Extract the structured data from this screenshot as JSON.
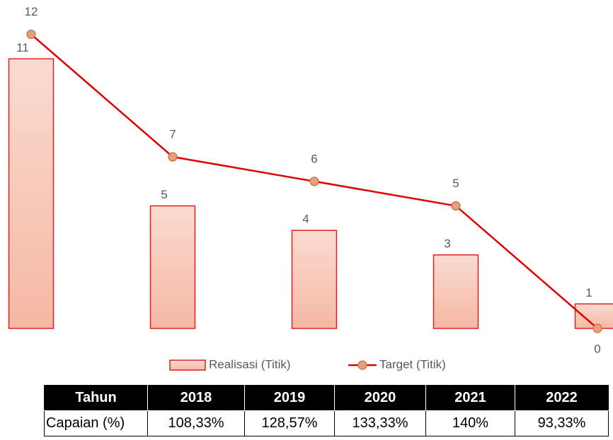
{
  "chart_data": {
    "type": "bar_line",
    "series": [
      {
        "name": "Realisasi (Titik)",
        "type": "bar",
        "color": "#e02020",
        "fill": "#f7c4b3",
        "values": [
          11,
          5,
          4,
          3,
          1
        ]
      },
      {
        "name": "Target (Titik)",
        "type": "line",
        "color": "#e00000",
        "marker_color": "#e8a07a",
        "values": [
          12,
          7,
          6,
          5,
          0
        ]
      }
    ],
    "ylim": [
      0,
      13.4
    ],
    "legend": "bottom"
  },
  "table": {
    "header": [
      "Tahun",
      "2018",
      "2019",
      "2020",
      "2021",
      "2022"
    ],
    "rows": [
      [
        "Capaian (%)",
        "108,33%",
        "128,57%",
        "133,33%",
        "140%",
        "93,33%"
      ]
    ]
  }
}
